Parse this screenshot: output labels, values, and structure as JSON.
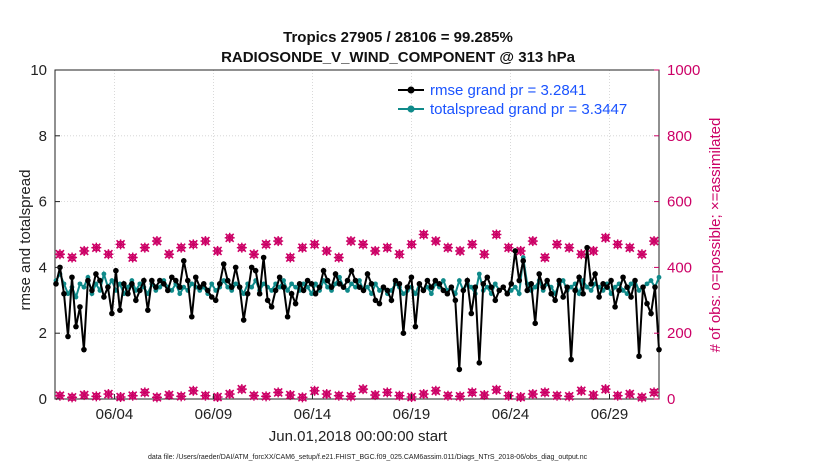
{
  "chart_data": {
    "type": "line",
    "title_line1": "Tropics 27905 / 28106 = 99.285%",
    "title_line2": "RADIOSONDE_V_WIND_COMPONENT @ 313 hPa",
    "xlabel": "Jun.01,2018 00:00:00 start",
    "ylabel_left": "rmse and totalspread",
    "ylabel_right": "# of obs: o=possible; ×=assimilated",
    "footer": "data file: /Users/raeder/DAI/ATM_forcXX/CAM6_setup/f.e21.FHIST_BGC.f09_025.CAM6assim.011/Diags_NTrS_2018-06/obs_diag_output.nc",
    "xlim": [
      1,
      31.5
    ],
    "ylim_left": [
      0,
      10
    ],
    "ylim_right": [
      0,
      1000
    ],
    "x_ticks": [
      {
        "value": 4,
        "label": "06/04"
      },
      {
        "value": 9,
        "label": "06/09"
      },
      {
        "value": 14,
        "label": "06/14"
      },
      {
        "value": 19,
        "label": "06/19"
      },
      {
        "value": 24,
        "label": "06/24"
      },
      {
        "value": 29,
        "label": "06/29"
      }
    ],
    "y_ticks_left": [
      "0",
      "2",
      "4",
      "6",
      "8",
      "10"
    ],
    "y_ticks_right": [
      "0",
      "200",
      "400",
      "600",
      "800",
      "1000"
    ],
    "series": [
      {
        "name": "rmse grand pr = 3.2841",
        "color": "#000000",
        "values": [
          3.5,
          4.0,
          3.2,
          1.9,
          3.7,
          2.2,
          2.8,
          1.5,
          3.6,
          3.3,
          3.8,
          3.6,
          3.1,
          3.4,
          2.6,
          3.9,
          2.7,
          3.5,
          3.2,
          3.5,
          3.0,
          3.3,
          3.6,
          2.7,
          3.6,
          3.4,
          3.6,
          3.5,
          3.3,
          3.7,
          3.6,
          3.4,
          4.2,
          3.6,
          2.5,
          3.7,
          3.4,
          3.5,
          3.3,
          3.1,
          3.0,
          3.5,
          4.1,
          3.6,
          3.4,
          4.0,
          3.4,
          2.4,
          3.2,
          4.0,
          3.9,
          3.2,
          4.3,
          3.0,
          2.8,
          3.3,
          3.7,
          3.4,
          2.5,
          3.2,
          2.9,
          3.5,
          3.3,
          3.6,
          3.5,
          3.2,
          3.4,
          3.9,
          3.6,
          3.4,
          3.8,
          3.5,
          3.4,
          3.6,
          3.9,
          3.6,
          3.4,
          3.3,
          3.8,
          3.5,
          3.0,
          2.9,
          3.4,
          3.3,
          3.0,
          3.6,
          3.5,
          2.0,
          3.4,
          3.7,
          2.2,
          3.5,
          3.3,
          3.6,
          3.4,
          3.6,
          3.5,
          3.3,
          3.2,
          3.4,
          3.0,
          0.9,
          3.3,
          3.6,
          2.6,
          3.4,
          1.1,
          3.5,
          3.7,
          3.4,
          3.0,
          3.3,
          3.4,
          3.2,
          3.5,
          4.5,
          3.6,
          4.2,
          3.3,
          3.5,
          2.3,
          3.8,
          3.4,
          3.6,
          3.2,
          3.0,
          3.6,
          3.1,
          3.4,
          1.2,
          3.3,
          3.7,
          3.2,
          4.6,
          3.5,
          3.8,
          3.1,
          3.5,
          3.4,
          3.6,
          2.8,
          3.3,
          3.7,
          3.4,
          3.1,
          3.6,
          1.3,
          3.4,
          2.9,
          2.6,
          3.4,
          1.5
        ],
        "markers": true
      },
      {
        "name": "totalspread grand pr = 3.3447",
        "color": "#0f8a8a",
        "values": [
          3.6,
          3.8,
          3.5,
          3.2,
          3.4,
          3.1,
          3.5,
          3.4,
          3.7,
          3.2,
          3.5,
          3.3,
          3.8,
          3.4,
          3.6,
          3.3,
          3.5,
          3.2,
          3.4,
          3.6,
          3.3,
          3.5,
          3.4,
          3.2,
          3.5,
          3.3,
          3.4,
          3.6,
          3.4,
          3.3,
          3.5,
          3.2,
          3.4,
          3.3,
          3.5,
          3.4,
          3.3,
          3.4,
          3.2,
          3.5,
          3.3,
          3.4,
          3.6,
          3.4,
          3.3,
          3.5,
          3.4,
          3.2,
          3.5,
          3.4,
          3.6,
          3.3,
          3.5,
          3.4,
          3.3,
          3.5,
          3.4,
          3.6,
          3.3,
          3.5,
          3.4,
          3.3,
          3.5,
          3.4,
          3.2,
          3.5,
          3.3,
          3.6,
          3.4,
          3.3,
          3.5,
          3.7,
          3.4,
          3.3,
          3.5,
          3.4,
          3.6,
          3.3,
          3.4,
          3.2,
          3.5,
          3.3,
          3.4,
          3.2,
          3.3,
          3.5,
          3.4,
          3.2,
          3.3,
          3.4,
          3.2,
          3.5,
          3.3,
          3.4,
          3.2,
          3.5,
          3.4,
          3.6,
          3.3,
          3.4,
          3.2,
          3.6,
          3.3,
          3.5,
          3.4,
          3.2,
          3.8,
          3.3,
          3.4,
          3.2,
          3.5,
          3.3,
          3.4,
          3.2,
          3.3,
          3.4,
          3.2,
          4.3,
          3.5,
          3.3,
          3.4,
          3.6,
          3.3,
          3.5,
          3.4,
          3.2,
          3.5,
          3.6,
          3.3,
          3.4,
          3.5,
          3.2,
          3.6,
          3.4,
          3.3,
          3.5,
          3.4,
          3.3,
          3.5,
          3.2,
          3.4,
          3.5,
          3.3,
          3.2,
          3.5,
          3.6,
          3.3,
          3.4,
          3.5,
          3.6,
          3.4,
          3.7
        ]
      }
    ],
    "obs_possible": [
      440,
      430,
      450,
      460,
      440,
      470,
      430,
      460,
      480,
      440,
      460,
      470,
      480,
      450,
      490,
      460,
      440,
      470,
      480,
      430,
      460,
      470,
      450,
      430,
      480,
      470,
      450,
      460,
      440,
      470,
      500,
      480,
      460,
      450,
      470,
      440,
      500,
      460,
      450,
      480,
      430,
      470,
      460,
      440,
      450,
      490,
      470,
      460,
      440,
      480
    ],
    "obs_assimilated": [
      440,
      430,
      450,
      460,
      440,
      470,
      430,
      460,
      480,
      440,
      460,
      470,
      480,
      450,
      490,
      460,
      440,
      470,
      480,
      430,
      460,
      470,
      450,
      430,
      480,
      470,
      450,
      460,
      440,
      470,
      500,
      480,
      460,
      450,
      470,
      440,
      500,
      460,
      450,
      480,
      430,
      470,
      460,
      440,
      450,
      490,
      470,
      460,
      440,
      480
    ],
    "obs_low": [
      10,
      5,
      12,
      8,
      15,
      6,
      10,
      20,
      5,
      12,
      8,
      25,
      10,
      6,
      15,
      30,
      10,
      8,
      20,
      12,
      5,
      25,
      15,
      10,
      8,
      30,
      12,
      20,
      10,
      6,
      15,
      25,
      10,
      8,
      20,
      12,
      28,
      10,
      6,
      15,
      20,
      10,
      8,
      25,
      12,
      30,
      10,
      15,
      5,
      20
    ],
    "grid": true,
    "legend_location": "top-right"
  }
}
